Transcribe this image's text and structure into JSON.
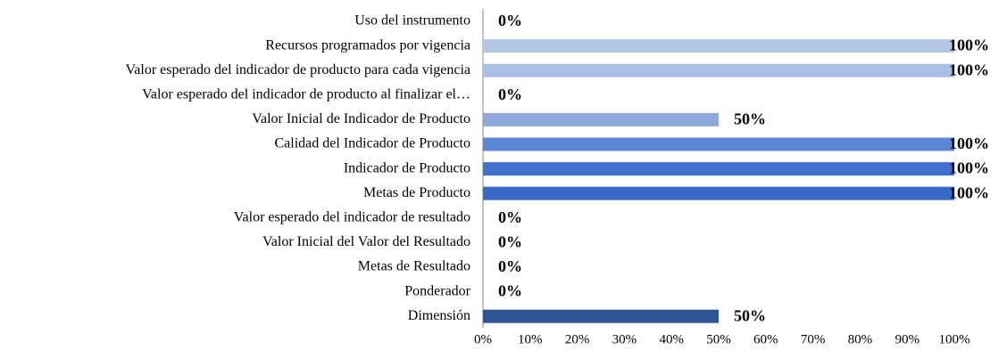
{
  "chart_data": {
    "type": "bar",
    "orientation": "horizontal",
    "categories": [
      "Uso del instrumento",
      "Recursos programados por vigencia",
      "Valor esperado del indicador de producto para cada vigencia",
      "Valor esperado del indicador de producto al finalizar el…",
      "Valor Inicial de Indicador de Producto",
      "Calidad del Indicador de Producto",
      "Indicador de Producto",
      "Metas de Producto",
      "Valor esperado del indicador de resultado",
      "Valor Inicial del Valor del Resultado",
      "Metas de Resultado",
      "Ponderador",
      "Dimensión"
    ],
    "values": [
      0,
      100,
      100,
      0,
      50,
      100,
      100,
      100,
      0,
      0,
      0,
      0,
      50
    ],
    "value_labels": [
      "0%",
      "100%",
      "100%",
      "0%",
      "50%",
      "100%",
      "100%",
      "100%",
      "0%",
      "0%",
      "0%",
      "0%",
      "50%"
    ],
    "colors": [
      "#b4c7e7",
      "#b4c7e7",
      "#a9bfe6",
      "#9fb6e2",
      "#8eaadb",
      "#5b87d6",
      "#3f70d0",
      "#3a68c8",
      "#3a68c8",
      "#3a68c8",
      "#3a68c8",
      "#3a68c8",
      "#2f5597"
    ],
    "xlim": [
      0,
      100
    ],
    "xticks": [
      {
        "value": 0,
        "label": "0%"
      },
      {
        "value": 10,
        "label": "10%"
      },
      {
        "value": 20,
        "label": "20%"
      },
      {
        "value": 30,
        "label": "30%"
      },
      {
        "value": 40,
        "label": "40%"
      },
      {
        "value": 50,
        "label": "50%"
      },
      {
        "value": 60,
        "label": "60%"
      },
      {
        "value": 70,
        "label": "70%"
      },
      {
        "value": 80,
        "label": "80%"
      },
      {
        "value": 90,
        "label": "90%"
      },
      {
        "value": 100,
        "label": "100%"
      }
    ]
  }
}
